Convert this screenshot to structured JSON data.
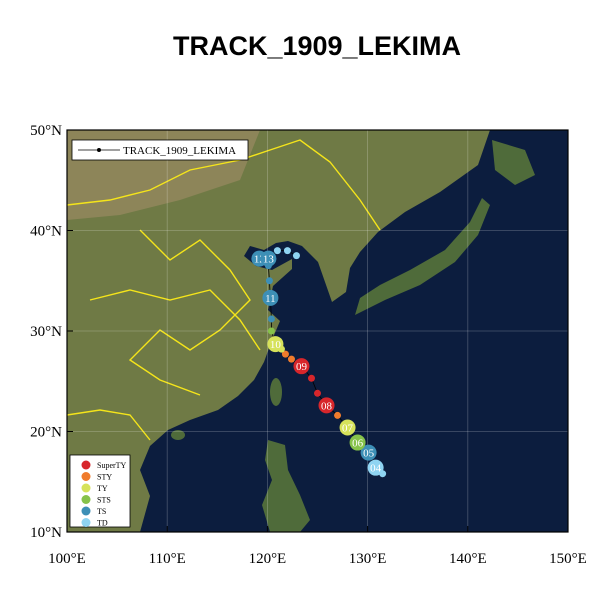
{
  "title": "TRACK_1909_LEKIMA",
  "map": {
    "xlim": [
      100,
      150
    ],
    "ylim": [
      10,
      50
    ],
    "xticks": [
      {
        "value": 100,
        "label": "100°E"
      },
      {
        "value": 110,
        "label": "110°E"
      },
      {
        "value": 120,
        "label": "120°E"
      },
      {
        "value": 130,
        "label": "130°E"
      },
      {
        "value": 140,
        "label": "140°E"
      },
      {
        "value": 150,
        "label": "150°E"
      }
    ],
    "yticks": [
      {
        "value": 10,
        "label": "10°N"
      },
      {
        "value": 20,
        "label": "20°N"
      },
      {
        "value": 30,
        "label": "30°N"
      },
      {
        "value": 40,
        "label": "40°N"
      },
      {
        "value": 50,
        "label": "50°N"
      }
    ],
    "grid": true
  },
  "legend": {
    "track_label": "TRACK_1909_LEKIMA"
  },
  "categories": [
    {
      "name": "SuperTY",
      "color": "#d7262b"
    },
    {
      "name": "STY",
      "color": "#f07b2c"
    },
    {
      "name": "TY",
      "color": "#d6e25a"
    },
    {
      "name": "STS",
      "color": "#86c24a"
    },
    {
      "name": "TS",
      "color": "#3d8fb6"
    },
    {
      "name": "TD",
      "color": "#8fd4f2"
    }
  ],
  "track": {
    "lon": [
      131.5,
      130.8,
      130.1,
      129.0,
      128.0,
      127.0,
      125.9,
      125.0,
      124.4,
      123.4,
      122.4,
      121.8,
      121.4,
      120.8,
      120.4,
      120.4,
      120.3,
      120.2,
      120.1,
      119.2,
      120.1,
      121.0,
      122.0,
      122.9
    ],
    "lat": [
      15.8,
      16.4,
      17.9,
      18.9,
      20.4,
      21.6,
      22.6,
      23.8,
      25.3,
      26.5,
      27.2,
      27.7,
      28.2,
      28.7,
      30.0,
      31.2,
      33.3,
      35.0,
      36.5,
      37.2,
      37.2,
      38.0,
      38.0,
      37.5
    ],
    "category": [
      "TD",
      "TD",
      "TS",
      "STS",
      "TY",
      "STY",
      "SuperTY",
      "SuperTY",
      "SuperTY",
      "SuperTY",
      "STY",
      "STY",
      "TY",
      "TY",
      "STS",
      "TS",
      "TS",
      "TS",
      "TS",
      "TS",
      "TS",
      "TD",
      "TD",
      "TD"
    ],
    "labels": [
      null,
      "04",
      "05",
      "06",
      "07",
      null,
      "08",
      null,
      null,
      "09",
      null,
      null,
      null,
      "10",
      null,
      null,
      "11",
      null,
      null,
      "12",
      "13",
      null,
      null,
      null
    ]
  }
}
